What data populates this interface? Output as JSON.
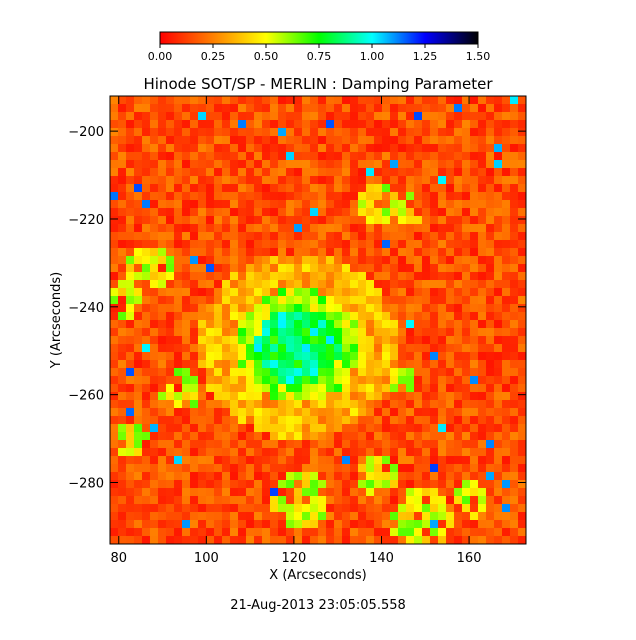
{
  "chart_data": {
    "type": "heatmap",
    "title": "Hinode SOT/SP - MERLIN : Damping Parameter",
    "xlabel": "X (Arcseconds)",
    "ylabel": "Y (Arcseconds)",
    "timestamp": "21-Aug-2013 23:05:05.558",
    "xlim": [
      78,
      173
    ],
    "ylim": [
      -294,
      -192
    ],
    "x_ticks": [
      80,
      100,
      120,
      140,
      160
    ],
    "y_ticks": [
      -200,
      -220,
      -240,
      -260,
      -280
    ],
    "x_tick_labels": [
      "80",
      "100",
      "120",
      "140",
      "160"
    ],
    "y_tick_labels": [
      "−200",
      "−220",
      "−240",
      "−260",
      "−280"
    ],
    "colorbar": {
      "range": [
        0.0,
        1.5
      ],
      "ticks": [
        0.0,
        0.25,
        0.5,
        0.75,
        1.0,
        1.25,
        1.5
      ],
      "tick_labels": [
        "0.00",
        "0.25",
        "0.50",
        "0.75",
        "1.00",
        "1.25",
        "1.50"
      ],
      "colors": [
        "#ff0000",
        "#ff8000",
        "#ffff00",
        "#00ff00",
        "#00ffff",
        "#0000ff",
        "#000000"
      ]
    },
    "features": {
      "background_level": 0.15,
      "sunspot_center": [
        121,
        -249
      ],
      "umbra_level": 0.85,
      "penumbra_level": 0.35
    }
  }
}
